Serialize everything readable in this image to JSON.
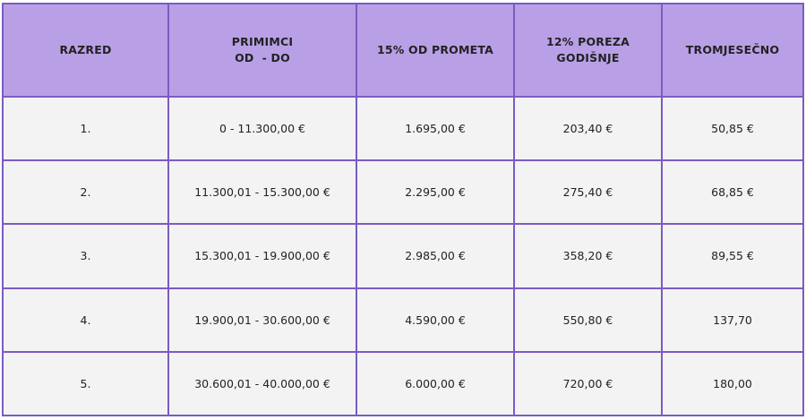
{
  "table": {
    "header": [
      [
        "RAZRED"
      ],
      [
        "PRIMIMCI",
        "OD  - DO"
      ],
      [
        "15% OD PROMETA"
      ],
      [
        "12% POREZA",
        "GODIŠNJE"
      ],
      [
        "TROMJESEČNO"
      ]
    ],
    "rows": [
      [
        "1.",
        "0 - 11.300,00 €",
        "1.695,00 €",
        "203,40 €",
        "50,85 €"
      ],
      [
        "2.",
        "11.300,01 - 15.300,00 €",
        "2.295,00 €",
        "275,40 €",
        "68,85 €"
      ],
      [
        "3.",
        "15.300,01 - 19.900,00 €",
        "2.985,00 €",
        "358,20 €",
        "89,55 €"
      ],
      [
        "4.",
        "19.900,01 - 30.600,00 €",
        "4.590,00 €",
        "550,80 €",
        "137,70"
      ],
      [
        "5.",
        "30.600,01 - 40.000,00 €",
        "6.000,00 €",
        "720,00 €",
        "180,00"
      ]
    ]
  }
}
